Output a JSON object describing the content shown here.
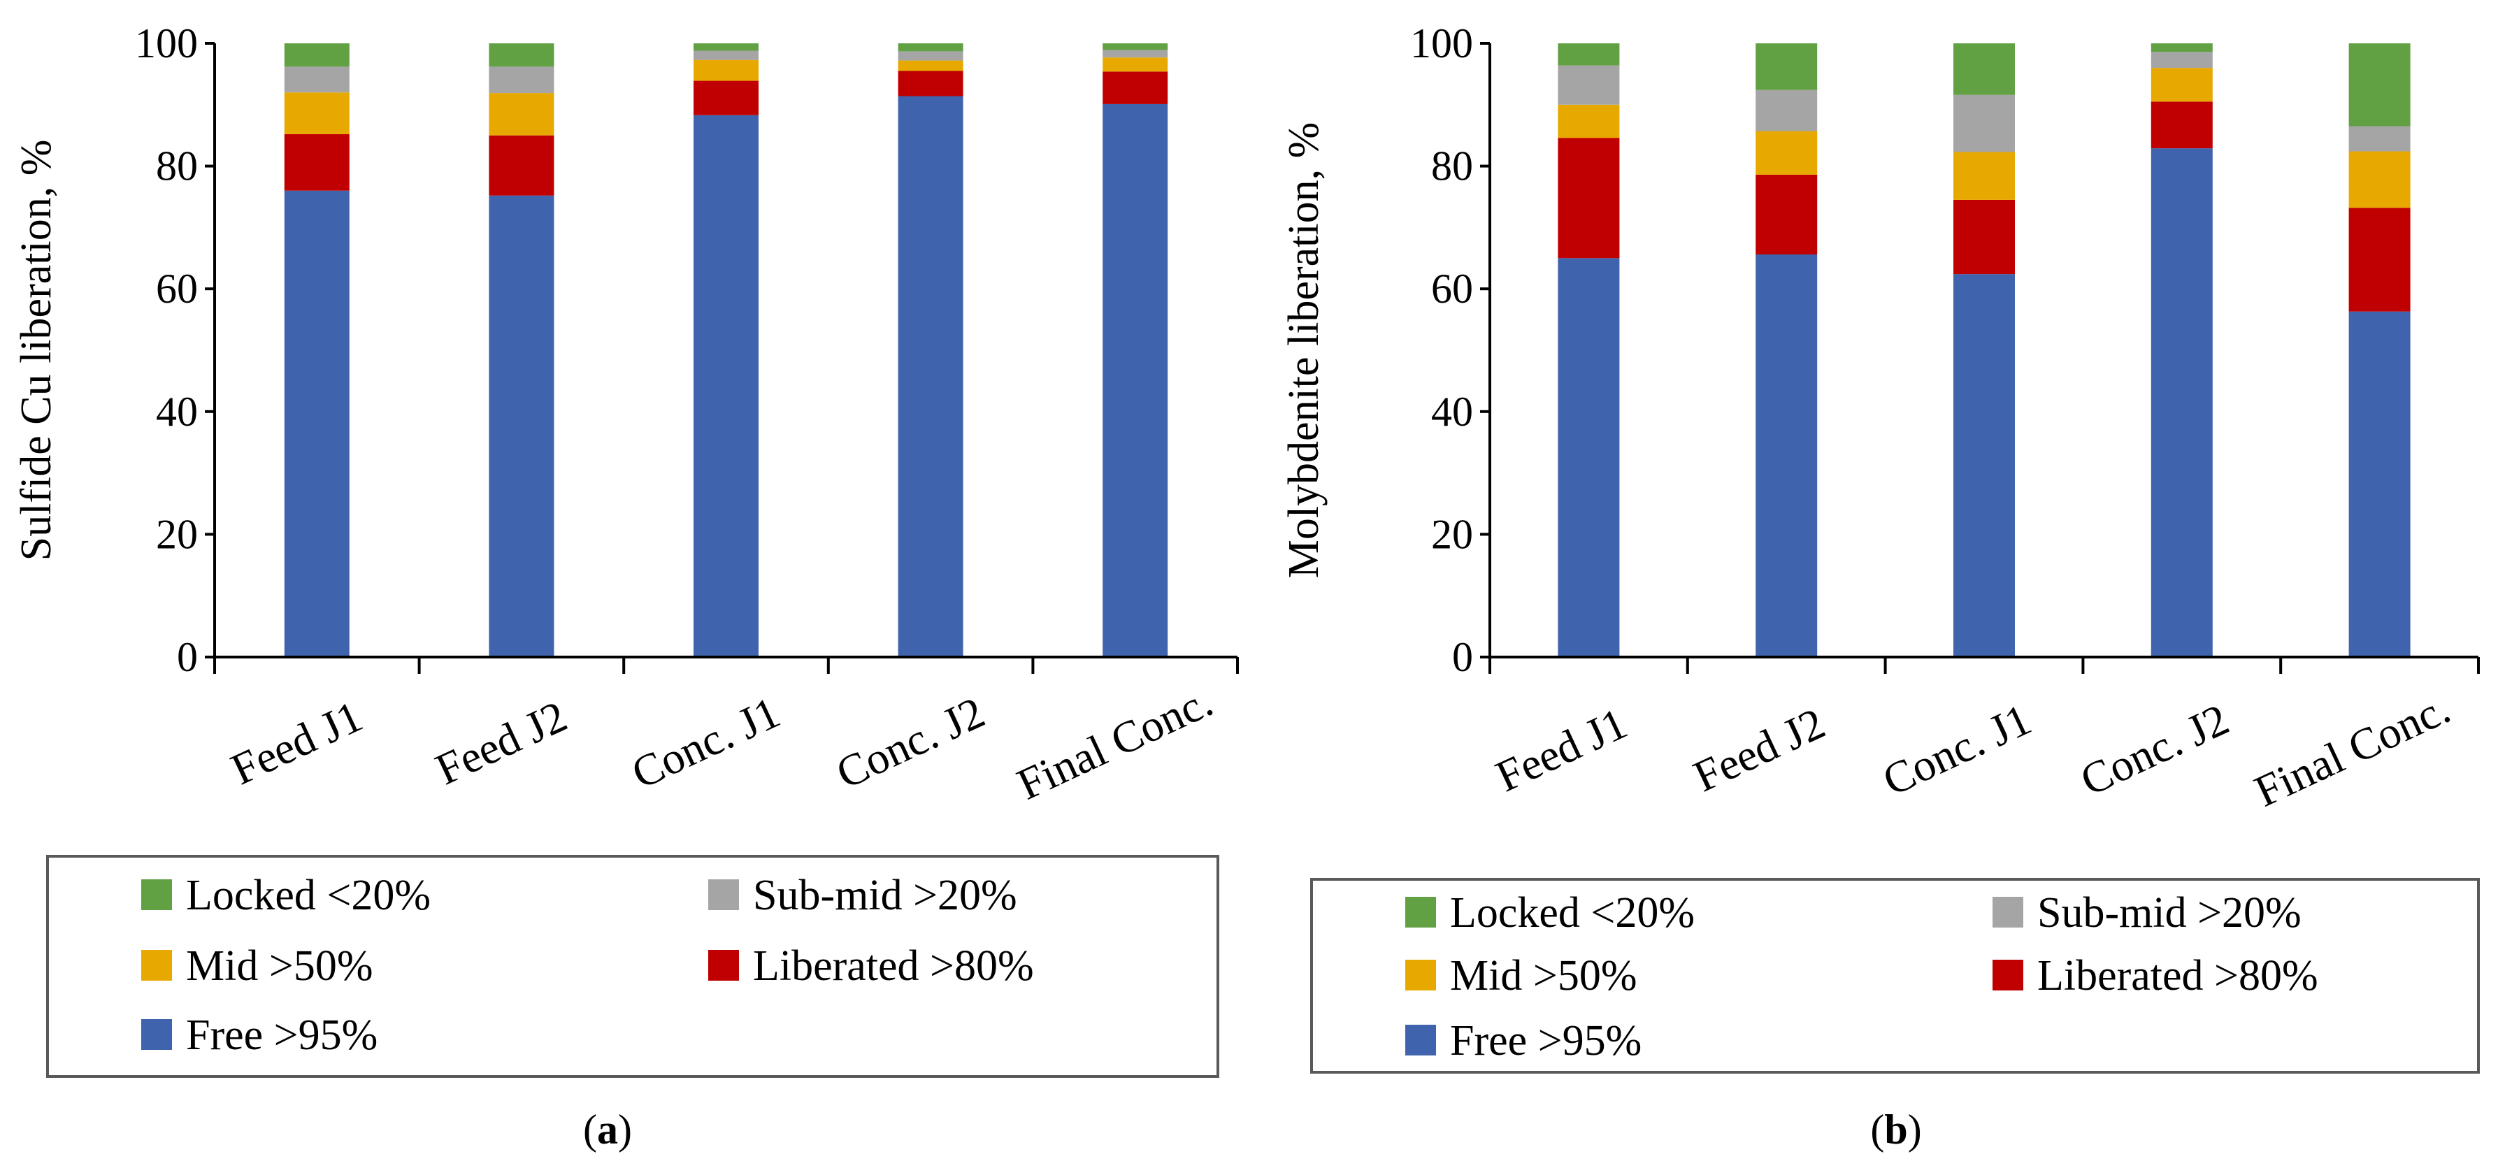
{
  "chart_data": [
    {
      "type": "bar",
      "stacked": true,
      "panel_label": "a",
      "title": "",
      "xlabel": "",
      "ylabel": "Sulfide Cu liberation, %",
      "ylim": [
        0,
        100
      ],
      "yticks": [
        "0",
        "20",
        "40",
        "60",
        "80",
        "100"
      ],
      "categories": [
        "Feed J1",
        "Feed J2",
        "Conc. J1",
        "Conc. J2",
        "Final Conc."
      ],
      "series": [
        {
          "name": "Free >95%",
          "color": "#4063AD",
          "values": [
            76.0,
            75.2,
            88.3,
            91.4,
            90.1
          ]
        },
        {
          "name": "Liberated >80%",
          "color": "#C00000",
          "values": [
            9.2,
            9.8,
            5.6,
            4.1,
            5.3
          ]
        },
        {
          "name": "Mid >50%",
          "color": "#E7A900",
          "values": [
            6.8,
            6.9,
            3.4,
            1.7,
            2.3
          ]
        },
        {
          "name": "Sub-mid >20%",
          "color": "#A5A5A5",
          "values": [
            4.2,
            4.3,
            1.5,
            1.5,
            1.2
          ]
        },
        {
          "name": "Locked <20%",
          "color": "#61A043",
          "values": [
            3.8,
            3.8,
            1.2,
            1.3,
            1.1
          ]
        }
      ],
      "legend": {
        "placement": "bottom",
        "order": [
          "Locked <20%",
          "Sub-mid >20%",
          "Mid >50%",
          "Liberated >80%",
          "Free >95%"
        ]
      }
    },
    {
      "type": "bar",
      "stacked": true,
      "panel_label": "b",
      "title": "",
      "xlabel": "",
      "ylabel": "Molybdenite liberation, %",
      "ylim": [
        0,
        100
      ],
      "yticks": [
        "0",
        "20",
        "40",
        "60",
        "80",
        "100"
      ],
      "categories": [
        "Feed J1",
        "Feed J2",
        "Conc. J1",
        "Conc. J2",
        "Final Conc."
      ],
      "series": [
        {
          "name": "Free >95%",
          "color": "#4063AD",
          "values": [
            65.0,
            65.6,
            62.4,
            82.9,
            56.3
          ]
        },
        {
          "name": "Liberated >80%",
          "color": "#C00000",
          "values": [
            19.6,
            13.0,
            12.1,
            7.6,
            16.9
          ]
        },
        {
          "name": "Mid >50%",
          "color": "#E7A900",
          "values": [
            5.4,
            7.1,
            7.8,
            5.5,
            9.2
          ]
        },
        {
          "name": "Sub-mid >20%",
          "color": "#A5A5A5",
          "values": [
            6.4,
            6.7,
            9.3,
            2.6,
            4.1
          ]
        },
        {
          "name": "Locked <20%",
          "color": "#61A043",
          "values": [
            3.6,
            7.6,
            8.4,
            1.4,
            13.5
          ]
        }
      ],
      "legend": {
        "placement": "bottom",
        "order": [
          "Locked <20%",
          "Sub-mid >20%",
          "Mid >50%",
          "Liberated >80%",
          "Free >95%"
        ]
      }
    }
  ]
}
